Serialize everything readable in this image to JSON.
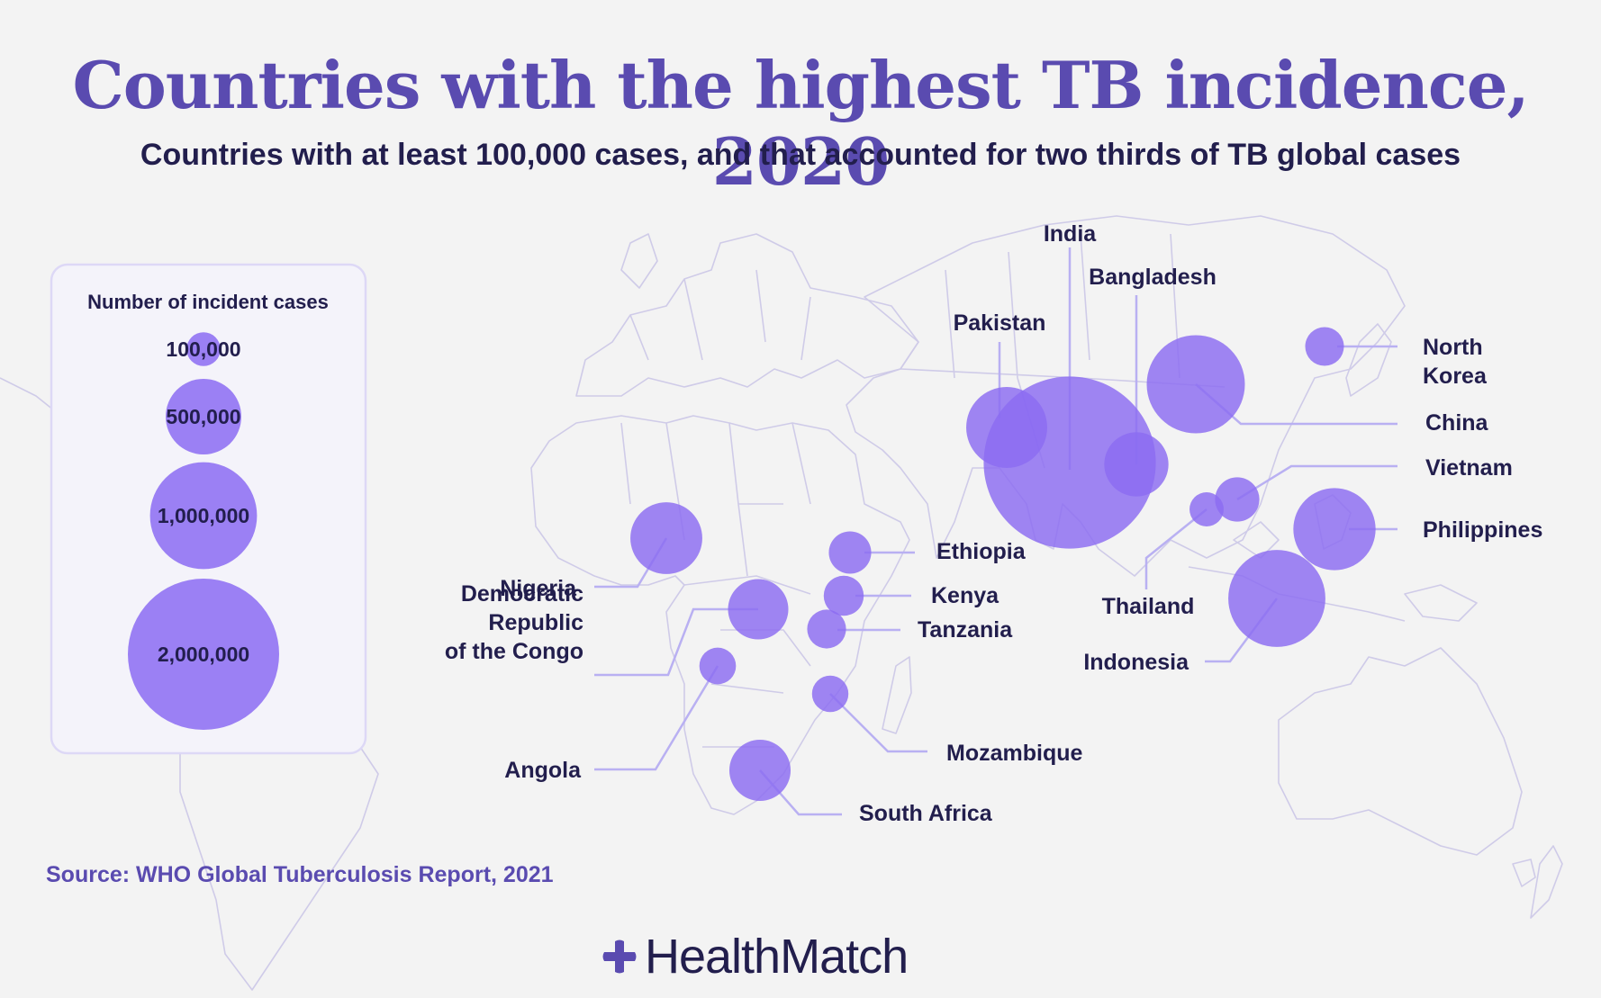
{
  "title": "Countries with the highest TB incidence, 2020",
  "subtitle": "Countries with at least 100,000 cases, and that accounted for two thirds of TB global cases",
  "source": "Source: WHO Global Tuberculosis Report, 2021",
  "brand": {
    "name": "HealthMatch",
    "icon": "cross-blob-icon"
  },
  "colors": {
    "bubble": "#8b6bf2",
    "bubble_stroke": "#7a5ae8",
    "title": "#5a4bb0",
    "label": "#221e4d",
    "leader": "#b9b0f2",
    "map_line": "#c9c5e6",
    "background": "#f3f3f3"
  },
  "legend": {
    "title": "Number of incident cases",
    "items": [
      {
        "label": "100,000",
        "value": 100000
      },
      {
        "label": "500,000",
        "value": 500000
      },
      {
        "label": "1,000,000",
        "value": 1000000
      },
      {
        "label": "2,000,000",
        "value": 2000000
      }
    ]
  },
  "chart_data": {
    "type": "proportional-symbol-map",
    "title": "Countries with the highest TB incidence, 2020",
    "subtitle": "Countries with at least 100,000 cases, and that accounted for two thirds of TB global cases",
    "size_legend": [
      100000,
      500000,
      1000000,
      2000000
    ],
    "countries": [
      {
        "name": "India",
        "label": "India",
        "value": 2590000
      },
      {
        "name": "China",
        "label": "China",
        "value": 842000
      },
      {
        "name": "Indonesia",
        "label": "Indonesia",
        "value": 824000
      },
      {
        "name": "Philippines",
        "label": "Philippines",
        "value": 591000
      },
      {
        "name": "Pakistan",
        "label": "Pakistan",
        "value": 573000
      },
      {
        "name": "Nigeria",
        "label": "Nigeria",
        "value": 452000
      },
      {
        "name": "Bangladesh",
        "label": "Bangladesh",
        "value": 360000
      },
      {
        "name": "South Africa",
        "label": "South Africa",
        "value": 328000
      },
      {
        "name": "Democratic Republic of the Congo",
        "label": "Democratic Republic of the Congo",
        "value": 318000
      },
      {
        "name": "Ethiopia",
        "label": "Ethiopia",
        "value": 157000
      },
      {
        "name": "Kenya",
        "label": "Kenya",
        "value": 140000
      },
      {
        "name": "Tanzania",
        "label": "Tanzania",
        "value": 132000
      },
      {
        "name": "Angola",
        "label": "Angola",
        "value": 117000
      },
      {
        "name": "Mozambique",
        "label": "Mozambique",
        "value": 116000
      },
      {
        "name": "Thailand",
        "label": "Thailand",
        "value": 102000
      },
      {
        "name": "Vietnam",
        "label": "Vietnam",
        "value": 172000
      },
      {
        "name": "North Korea",
        "label": "North Korea",
        "value": 131000
      }
    ]
  }
}
